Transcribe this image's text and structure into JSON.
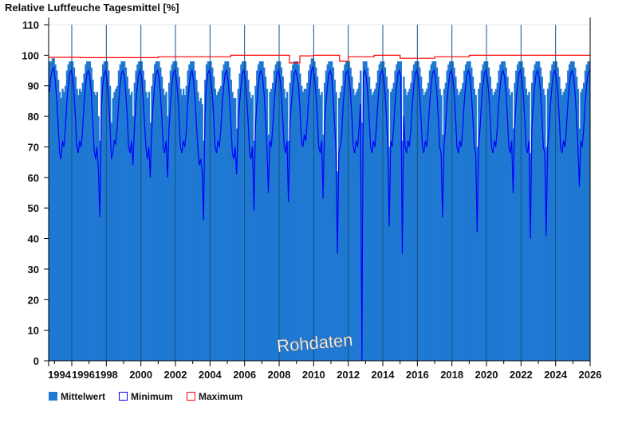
{
  "chart_data": {
    "type": "area",
    "title": "Relative Luftfeuche Tagesmittel [%]",
    "xlabel": "",
    "ylabel": "",
    "ylim": [
      0,
      110
    ],
    "xlim": [
      1994.667,
      2026
    ],
    "yticks": [
      0,
      10,
      20,
      30,
      40,
      50,
      60,
      70,
      80,
      90,
      100,
      110
    ],
    "xticks": [
      "1994",
      "1996",
      "1998",
      "2000",
      "2002",
      "2004",
      "2006",
      "2008",
      "2010",
      "2012",
      "2014",
      "2016",
      "2018",
      "2020",
      "2022",
      "2024",
      "2026"
    ],
    "grid": "horizontal at 110, vertical at even years",
    "legend_position": "bottom-left",
    "watermark": "Rohdaten",
    "start_year": 1994,
    "start_month": 9,
    "series": [
      {
        "name": "Mittelwert",
        "color": "#1f78d1",
        "monthly": [
          [
            98,
            98,
            99,
            99
          ],
          [
            97,
            95,
            92,
            88,
            86,
            89,
            88,
            90,
            95,
            97,
            98,
            98
          ],
          [
            98,
            96,
            93,
            89,
            87,
            89,
            88,
            91,
            94,
            97,
            98,
            98
          ],
          [
            98,
            96,
            92,
            88,
            87,
            88,
            80,
            72,
            93,
            97,
            98,
            98
          ],
          [
            98,
            95,
            90,
            78,
            86,
            88,
            89,
            90,
            95,
            97,
            98,
            98
          ],
          [
            98,
            96,
            93,
            89,
            87,
            88,
            80,
            91,
            95,
            97,
            98,
            98
          ],
          [
            98,
            95,
            92,
            88,
            86,
            88,
            78,
            90,
            94,
            97,
            98,
            98
          ],
          [
            98,
            96,
            93,
            89,
            87,
            88,
            80,
            91,
            95,
            97,
            98,
            98
          ],
          [
            98,
            96,
            93,
            89,
            87,
            89,
            87,
            90,
            95,
            97,
            98,
            98
          ],
          [
            98,
            95,
            92,
            88,
            85,
            86,
            84,
            72,
            92,
            97,
            98,
            98
          ],
          [
            98,
            96,
            93,
            89,
            87,
            88,
            89,
            90,
            95,
            97,
            98,
            98
          ],
          [
            98,
            96,
            92,
            88,
            86,
            86,
            76,
            89,
            94,
            97,
            98,
            98
          ],
          [
            98,
            95,
            92,
            88,
            86,
            87,
            72,
            90,
            95,
            97,
            98,
            98
          ],
          [
            98,
            96,
            93,
            89,
            74,
            88,
            89,
            91,
            95,
            97,
            98,
            98
          ],
          [
            98,
            96,
            93,
            89,
            86,
            88,
            72,
            91,
            95,
            97,
            98,
            98
          ],
          [
            98,
            97,
            94,
            90,
            88,
            89,
            89,
            91,
            95,
            97,
            99,
            99
          ],
          [
            98,
            96,
            93,
            89,
            87,
            88,
            74,
            91,
            95,
            97,
            98,
            98
          ],
          [
            98,
            96,
            92,
            88,
            62,
            86,
            88,
            90,
            95,
            97,
            98,
            98
          ],
          [
            98,
            96,
            93,
            89,
            87,
            88,
            89,
            91,
            95,
            78,
            98,
            98
          ],
          [
            98,
            96,
            93,
            89,
            87,
            88,
            89,
            91,
            95,
            97,
            98,
            98
          ],
          [
            98,
            96,
            93,
            89,
            70,
            88,
            89,
            91,
            95,
            97,
            98,
            98
          ],
          [
            98,
            72,
            93,
            89,
            87,
            88,
            89,
            91,
            95,
            97,
            98,
            98
          ],
          [
            98,
            96,
            93,
            89,
            87,
            88,
            89,
            91,
            95,
            97,
            98,
            98
          ],
          [
            98,
            96,
            93,
            89,
            87,
            74,
            89,
            91,
            95,
            97,
            98,
            98
          ],
          [
            98,
            96,
            93,
            89,
            87,
            88,
            89,
            91,
            95,
            97,
            98,
            98
          ],
          [
            98,
            96,
            93,
            89,
            87,
            70,
            89,
            91,
            95,
            97,
            98,
            98
          ],
          [
            98,
            96,
            93,
            89,
            87,
            88,
            89,
            91,
            95,
            97,
            98,
            98
          ],
          [
            98,
            96,
            93,
            89,
            87,
            88,
            76,
            91,
            95,
            97,
            98,
            98
          ],
          [
            98,
            96,
            93,
            89,
            87,
            88,
            68,
            91,
            95,
            97,
            98,
            98
          ],
          [
            98,
            96,
            93,
            89,
            87,
            70,
            89,
            91,
            95,
            97,
            98,
            98
          ],
          [
            98,
            96,
            93,
            89,
            87,
            88,
            89,
            91,
            95,
            97,
            98,
            98
          ],
          [
            98,
            96,
            93,
            89,
            76,
            88,
            89,
            91,
            95,
            97,
            98,
            98
          ]
        ]
      },
      {
        "name": "Minimum",
        "color": "#0000ff",
        "monthly": [
          [
            88,
            93,
            95,
            96
          ],
          [
            92,
            86,
            78,
            68,
            66,
            72,
            70,
            76,
            84,
            90,
            94,
            95
          ],
          [
            93,
            88,
            80,
            70,
            68,
            72,
            70,
            75,
            84,
            90,
            94,
            95
          ],
          [
            93,
            88,
            79,
            69,
            66,
            70,
            62,
            47,
            82,
            90,
            94,
            95
          ],
          [
            92,
            86,
            78,
            66,
            68,
            72,
            71,
            76,
            84,
            90,
            94,
            95
          ],
          [
            93,
            88,
            80,
            70,
            68,
            72,
            64,
            76,
            84,
            90,
            94,
            95
          ],
          [
            93,
            86,
            78,
            70,
            66,
            70,
            60,
            75,
            84,
            90,
            94,
            95
          ],
          [
            93,
            88,
            80,
            70,
            68,
            72,
            60,
            76,
            84,
            90,
            94,
            95
          ],
          [
            93,
            88,
            80,
            70,
            68,
            72,
            70,
            75,
            84,
            90,
            94,
            95
          ],
          [
            92,
            86,
            78,
            70,
            64,
            66,
            62,
            46,
            80,
            90,
            94,
            95
          ],
          [
            93,
            88,
            80,
            70,
            68,
            72,
            70,
            76,
            84,
            90,
            94,
            95
          ],
          [
            92,
            86,
            78,
            68,
            66,
            70,
            61,
            76,
            84,
            90,
            94,
            95
          ],
          [
            92,
            86,
            78,
            68,
            66,
            70,
            49,
            76,
            84,
            90,
            94,
            95
          ],
          [
            93,
            88,
            80,
            70,
            55,
            72,
            70,
            76,
            84,
            90,
            94,
            95
          ],
          [
            93,
            88,
            80,
            70,
            68,
            72,
            52,
            76,
            84,
            90,
            94,
            95
          ],
          [
            93,
            90,
            82,
            72,
            70,
            74,
            72,
            78,
            86,
            90,
            95,
            96
          ],
          [
            93,
            88,
            80,
            70,
            68,
            72,
            53,
            76,
            84,
            90,
            94,
            95
          ],
          [
            93,
            86,
            78,
            68,
            35,
            68,
            70,
            74,
            84,
            90,
            94,
            95
          ],
          [
            93,
            88,
            80,
            70,
            68,
            72,
            70,
            76,
            84,
            0,
            94,
            95
          ],
          [
            93,
            88,
            80,
            70,
            68,
            72,
            70,
            76,
            84,
            90,
            94,
            95
          ],
          [
            93,
            88,
            80,
            70,
            44,
            72,
            70,
            76,
            84,
            90,
            94,
            95
          ],
          [
            93,
            35,
            80,
            70,
            68,
            72,
            70,
            76,
            84,
            90,
            94,
            95
          ],
          [
            93,
            88,
            80,
            70,
            68,
            72,
            70,
            76,
            84,
            90,
            94,
            95
          ],
          [
            93,
            88,
            80,
            70,
            68,
            47,
            70,
            76,
            84,
            90,
            94,
            95
          ],
          [
            93,
            88,
            80,
            70,
            68,
            72,
            70,
            76,
            84,
            90,
            94,
            95
          ],
          [
            93,
            88,
            80,
            70,
            68,
            42,
            70,
            76,
            84,
            90,
            94,
            95
          ],
          [
            93,
            88,
            80,
            70,
            68,
            72,
            70,
            76,
            84,
            90,
            94,
            95
          ],
          [
            93,
            88,
            80,
            70,
            68,
            72,
            55,
            76,
            84,
            90,
            94,
            95
          ],
          [
            93,
            88,
            80,
            70,
            68,
            72,
            40,
            76,
            84,
            90,
            94,
            95
          ],
          [
            93,
            88,
            80,
            70,
            68,
            41,
            70,
            76,
            84,
            90,
            94,
            95
          ],
          [
            93,
            88,
            80,
            70,
            68,
            72,
            70,
            76,
            84,
            90,
            94,
            95
          ],
          [
            93,
            88,
            80,
            70,
            57,
            72,
            70,
            76,
            84,
            90,
            94,
            95
          ]
        ]
      },
      {
        "name": "Maximum",
        "color": "#ff0000",
        "segments": [
          {
            "from": 1994.667,
            "to": 1996.5,
            "value": 99.3
          },
          {
            "from": 1996.5,
            "to": 2001.0,
            "value": 99.2
          },
          {
            "from": 2001.0,
            "to": 2005.2,
            "value": 99.5
          },
          {
            "from": 2005.2,
            "to": 2008.6,
            "value": 100
          },
          {
            "from": 2008.6,
            "to": 2009.2,
            "value": 97.5
          },
          {
            "from": 2009.2,
            "to": 2010.0,
            "value": 99.8
          },
          {
            "from": 2010.0,
            "to": 2011.5,
            "value": 100
          },
          {
            "from": 2011.5,
            "to": 2012.0,
            "value": 98
          },
          {
            "from": 2012.0,
            "to": 2013.5,
            "value": 99.5
          },
          {
            "from": 2013.5,
            "to": 2015.0,
            "value": 100
          },
          {
            "from": 2015.0,
            "to": 2017.0,
            "value": 99
          },
          {
            "from": 2017.0,
            "to": 2019.0,
            "value": 99.5
          },
          {
            "from": 2019.0,
            "to": 2026.0,
            "value": 100
          }
        ]
      }
    ]
  }
}
